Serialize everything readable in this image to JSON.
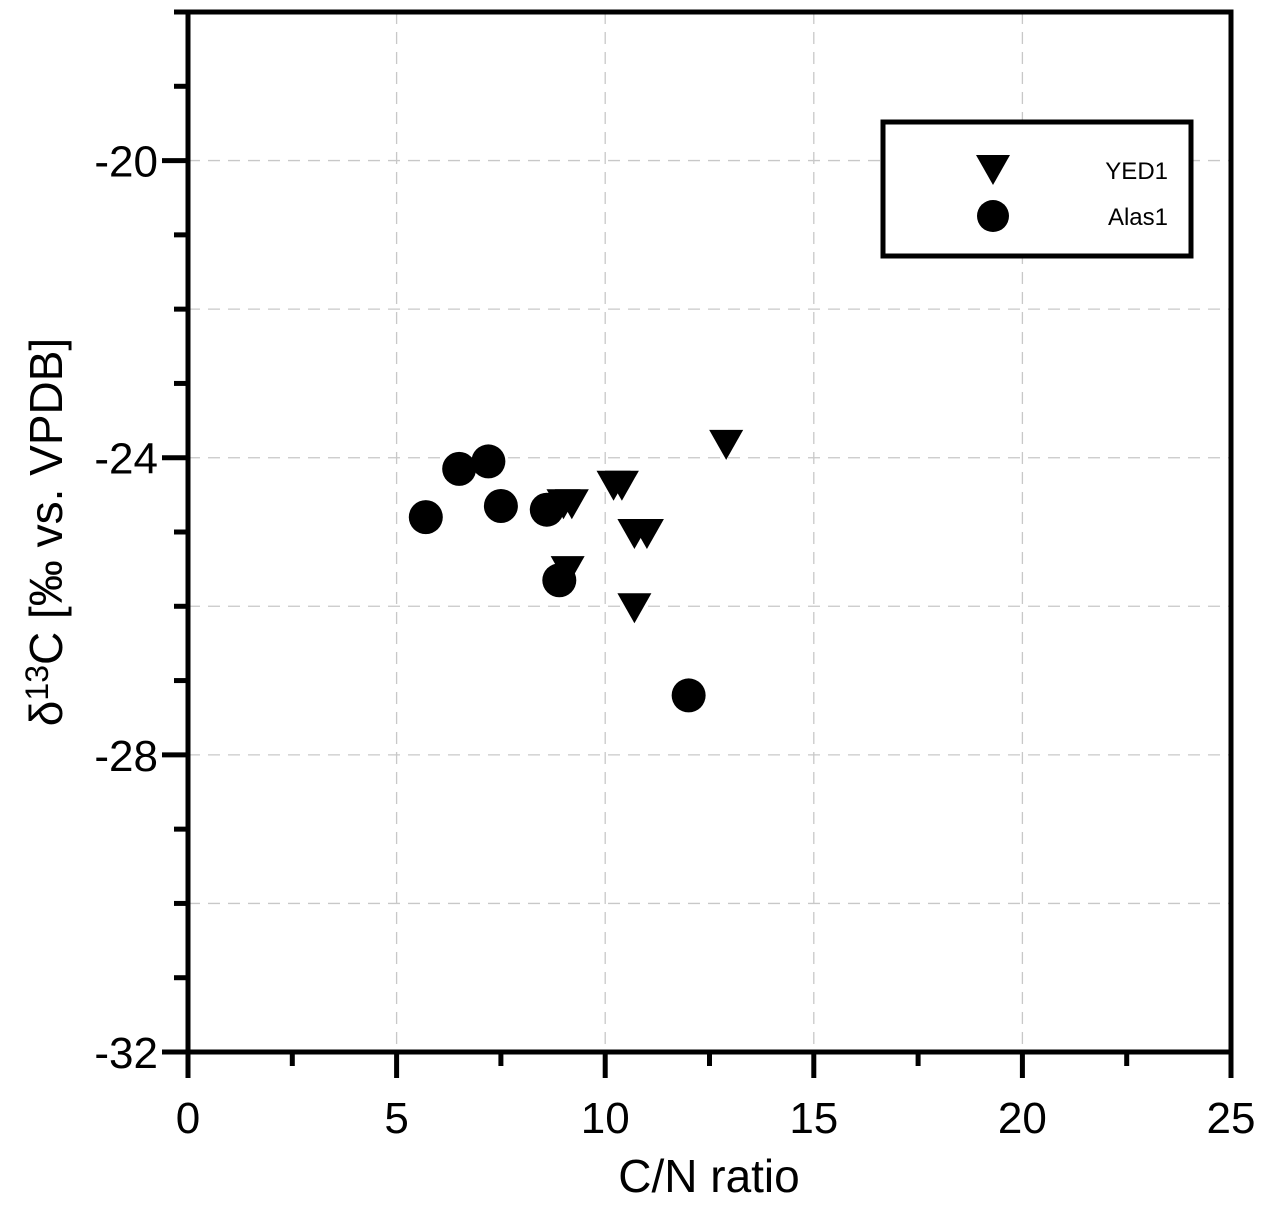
{
  "chart_data": {
    "type": "scatter",
    "title": "",
    "xlabel": "C/N ratio",
    "ylabel": "δ13C [‰ vs. VPDB]",
    "ylabel_parts": {
      "symbol": "δ",
      "superscript": "13",
      "rest": "C [‰ vs. VPDB]"
    },
    "xlim": [
      0,
      25
    ],
    "ylim": [
      -32,
      -18
    ],
    "x_ticks": [
      0,
      5,
      10,
      15,
      20,
      25
    ],
    "x_tick_labels": [
      "0",
      "5",
      "10",
      "15",
      "20",
      "25"
    ],
    "y_ticks": [
      -32,
      -28,
      -24,
      -20
    ],
    "y_tick_labels": [
      "-32",
      "-28",
      "-24",
      "-20"
    ],
    "grid": true,
    "legend_position": "top-right",
    "series": [
      {
        "name": "YED1",
        "marker": "triangle-down",
        "color": "#000000",
        "x": [
          9.0,
          9.2,
          10.2,
          10.4,
          10.7,
          11.0,
          9.1,
          10.7,
          12.9
        ],
        "y": [
          -24.6,
          -24.6,
          -24.35,
          -24.35,
          -25.0,
          -25.0,
          -25.5,
          -26.0,
          -23.8
        ]
      },
      {
        "name": "Alas1",
        "marker": "circle",
        "color": "#000000",
        "x": [
          5.7,
          6.5,
          7.2,
          7.5,
          8.6,
          8.9,
          12.0
        ],
        "y": [
          -24.8,
          -24.15,
          -24.05,
          -24.65,
          -24.7,
          -25.65,
          -27.2
        ]
      }
    ]
  }
}
